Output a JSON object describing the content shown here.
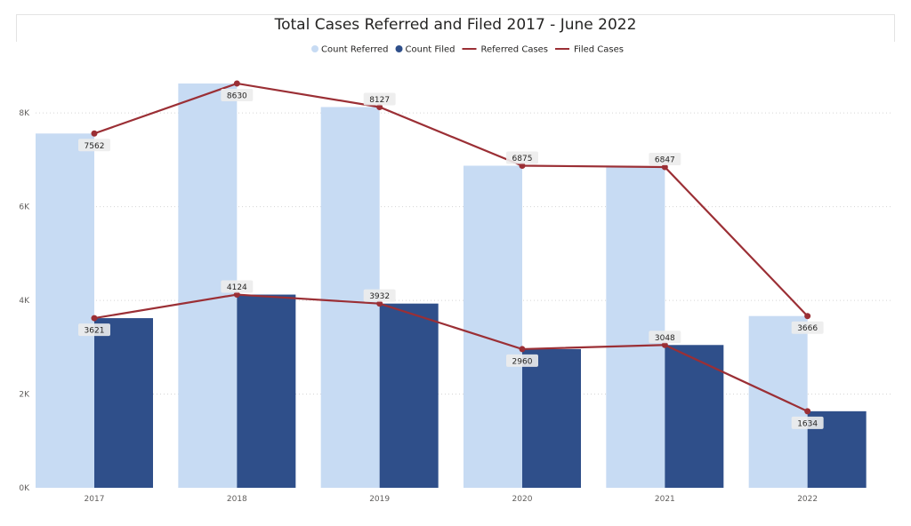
{
  "chart_data": {
    "type": "bar",
    "title": "Total Cases Referred and Filed 2017 - June 2022",
    "categories": [
      "2017",
      "2018",
      "2019",
      "2020",
      "2021",
      "2022"
    ],
    "series": [
      {
        "name": "Count Referred",
        "kind": "bar",
        "color": "#c7dbf3",
        "values": [
          7562,
          8630,
          8127,
          6875,
          6847,
          3666
        ]
      },
      {
        "name": "Count Filed",
        "kind": "bar",
        "color": "#2f4f8a",
        "values": [
          3621,
          4124,
          3932,
          2960,
          3048,
          1634
        ]
      },
      {
        "name": "Referred Cases",
        "kind": "line",
        "color": "#9b2f35",
        "values": [
          7562,
          8630,
          8127,
          6875,
          6847,
          3666
        ]
      },
      {
        "name": "Filed Cases",
        "kind": "line",
        "color": "#9b2f35",
        "values": [
          3621,
          4124,
          3932,
          2960,
          3048,
          1634
        ]
      }
    ],
    "y_ticks": [
      "0K",
      "2K",
      "4K",
      "6K",
      "8K"
    ],
    "ylim": [
      0,
      9000
    ],
    "xlabel": "",
    "ylabel": "",
    "grid": true,
    "legend_position": "top-center"
  }
}
